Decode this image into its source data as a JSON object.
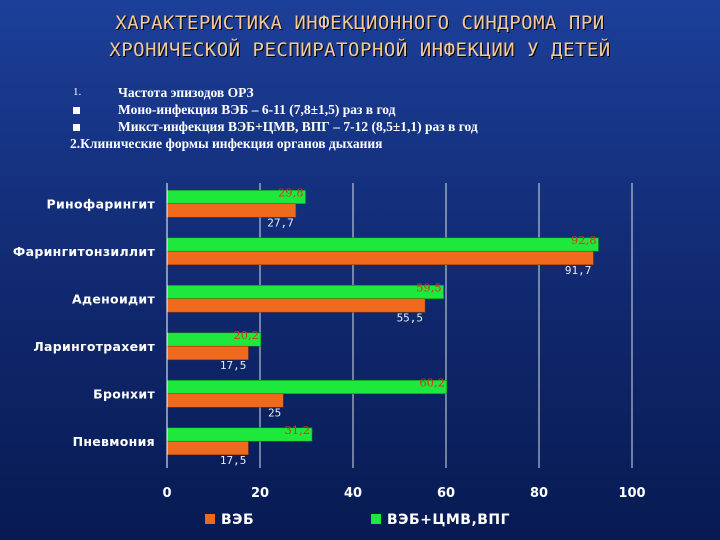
{
  "title": {
    "line1": "ХАРАКТЕРИСТИКА ИНФЕКЦИОННОГО СИНДРОМА ПРИ",
    "line2": "ХРОНИЧЕСКОЙ РЕСПИРАТОРНОЙ ИНФЕКЦИИ У ДЕТЕЙ"
  },
  "info": {
    "item1_marker": "1.",
    "item1_text": "Частота эпизодов ОРЗ",
    "bullet1_text": "Моно-инфекция ВЭБ – 6-11 (7,8±1,5) раз в год",
    "bullet2_text": "Микст-инфекция ВЭБ+ЦМВ, ВПГ – 7-12 (8,5±1,1) раз в год",
    "item2_text": "2.Клинические формы инфекция органов дыхания"
  },
  "colors": {
    "series1": "#f06a1e",
    "series2": "#1ee83c",
    "grid": "#ffffff",
    "label2": "#d23a1e"
  },
  "chart_data": {
    "type": "bar",
    "orientation": "horizontal",
    "categories": [
      "Ринофарингит",
      "Фарингитонзиллит",
      "Аденоидит",
      "Ларинготрахеит",
      "Бронхит",
      "Пневмония"
    ],
    "series": [
      {
        "name": "ВЭБ",
        "values": [
          27.7,
          91.7,
          55.5,
          17.5,
          25,
          17.5
        ],
        "labels": [
          "27,7",
          "91,7",
          "55,5",
          "17,5",
          "25",
          "17,5"
        ]
      },
      {
        "name": "ВЭБ+ЦМВ,ВПГ",
        "values": [
          29.8,
          92.8,
          59.5,
          20.2,
          60.2,
          31.2
        ],
        "labels": [
          "29,8",
          "92,8",
          "59,5",
          "20,2",
          "60,2",
          "31,2"
        ]
      }
    ],
    "xlim": [
      0,
      100
    ],
    "xticks": [
      "0",
      "20",
      "40",
      "60",
      "80",
      "100"
    ],
    "grid": true,
    "legend_position": "bottom"
  }
}
